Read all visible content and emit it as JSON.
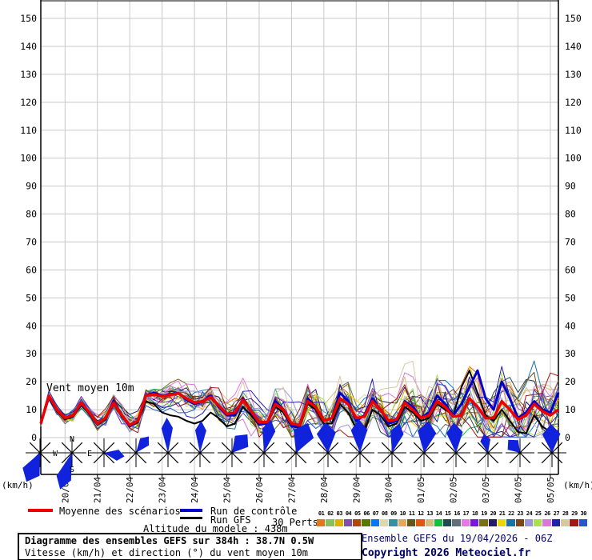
{
  "colors": {
    "mean": "#ee0000",
    "control": "#0000cc",
    "gfs": "#000000",
    "rose": "#1122dd",
    "grid": "#c8c8c8",
    "axis": "#000000",
    "credit_text": "#000066"
  },
  "chart_data": {
    "type": "line",
    "title": "Diagramme des ensembles GEFS sur 384h : 38.7N 0.5W",
    "subtitle": "Vitesse (km/h) et direction (°) du vent moyen 10m",
    "annotation": "Vent moyen 10m",
    "unit_left": "(km/h)",
    "unit_right": "(km/h)",
    "ylim": [
      0,
      155
    ],
    "yticks": [
      0,
      10,
      20,
      30,
      40,
      50,
      60,
      70,
      80,
      90,
      100,
      110,
      120,
      130,
      140,
      150
    ],
    "step_hours": 6,
    "total_hours": 384,
    "x_dates": [
      "20/04",
      "21/04",
      "22/04",
      "23/04",
      "24/04",
      "25/04",
      "26/04",
      "27/04",
      "28/04",
      "29/04",
      "30/04",
      "01/05",
      "02/05",
      "03/05",
      "04/05",
      "05/05"
    ],
    "series": [
      {
        "name": "Moyenne des scénarios",
        "color": "#ee0000",
        "values": [
          5,
          15,
          10,
          7,
          8,
          12.5,
          9,
          5,
          7,
          12.5,
          8,
          4.5,
          6,
          15,
          15.5,
          14.8,
          15.3,
          15.8,
          14,
          12.5,
          13,
          14.5,
          11.5,
          8.5,
          9,
          13.5,
          9.5,
          5.5,
          5.5,
          12,
          10,
          5,
          4.5,
          13,
          11,
          6,
          7,
          14,
          12,
          7,
          7.5,
          13,
          10,
          6,
          6.5,
          12.5,
          10,
          7,
          8,
          13,
          11,
          7.5,
          8,
          14,
          11,
          7,
          7,
          13,
          10,
          6.5,
          8,
          12,
          9.5,
          8,
          10
        ]
      },
      {
        "name": "Run de contrôle",
        "color": "#0000cc",
        "values": [
          5,
          14.5,
          10,
          7,
          8,
          12,
          9,
          5,
          7,
          13,
          8,
          4,
          6,
          15,
          16,
          15,
          15.5,
          16,
          13.5,
          12,
          13,
          15,
          11,
          8,
          8,
          14,
          9,
          5,
          5,
          13,
          10,
          4,
          4,
          14,
          11,
          6,
          7,
          16,
          13,
          6,
          8,
          14,
          10,
          5,
          6,
          13,
          11,
          7,
          9,
          15,
          12,
          8,
          12,
          18,
          24,
          14,
          10,
          20,
          14,
          7,
          9,
          13,
          10,
          9,
          16
        ]
      },
      {
        "name": "Run GFS",
        "color": "#000000",
        "values": [
          5,
          14,
          9.5,
          6.5,
          7.5,
          11.5,
          8.5,
          4.5,
          6.5,
          12,
          7.5,
          4,
          5.5,
          13,
          12,
          9,
          8,
          7.5,
          6,
          5,
          6,
          9,
          7,
          4,
          5,
          11,
          8,
          4.5,
          5,
          11,
          9,
          4,
          3.5,
          12,
          10,
          5,
          5,
          12,
          9,
          3,
          2.5,
          10,
          8,
          4,
          5,
          11,
          9,
          6,
          7,
          12,
          10,
          8,
          18,
          24,
          16,
          8,
          6,
          10,
          6,
          2,
          1.5,
          8,
          4,
          2,
          2
        ]
      }
    ],
    "members": {
      "count": 30,
      "seed": 13,
      "spread_base": 1.0,
      "spread_growth": 0.14,
      "max": 36,
      "colors": [
        "#e07820",
        "#88c060",
        "#e0b000",
        "#8050a8",
        "#b04808",
        "#587800",
        "#0878f0",
        "#dcd8b0",
        "#3890a0",
        "#e0a860",
        "#605818",
        "#e05810",
        "#d0c080",
        "#10c040",
        "#204850",
        "#607078",
        "#e878e8",
        "#7818d8",
        "#787018",
        "#281868",
        "#e8d800",
        "#1870a8",
        "#784818",
        "#9898d8",
        "#a8e050",
        "#d878d8",
        "#2020a8",
        "#d8c8a0",
        "#a01818",
        "#2858c8"
      ]
    },
    "wind_roses": [
      {
        "dir": 205,
        "len": 40,
        "spread": 24
      },
      {
        "dir": 198,
        "len": 48,
        "spread": 16
      },
      {
        "dir": 100,
        "len": 26,
        "spread": 22
      },
      {
        "dir": 38,
        "len": 26,
        "spread": 22
      },
      {
        "dir": 358,
        "len": 44,
        "spread": 13
      },
      {
        "dir": 2,
        "len": 40,
        "spread": 14
      },
      {
        "dir": 40,
        "len": 30,
        "spread": 30
      },
      {
        "dir": 12,
        "len": 42,
        "spread": 16
      },
      {
        "dir": 22,
        "len": 40,
        "spread": 28
      },
      {
        "dir": 355,
        "len": 38,
        "spread": 26
      },
      {
        "dir": 358,
        "len": 42,
        "spread": 20
      },
      {
        "dir": 14,
        "len": 38,
        "spread": 18
      },
      {
        "dir": 8,
        "len": 40,
        "spread": 24
      },
      {
        "dir": 356,
        "len": 38,
        "spread": 22
      },
      {
        "dir": 348,
        "len": 24,
        "spread": 22
      },
      {
        "dir": 318,
        "len": 22,
        "spread": 34
      },
      {
        "dir": 358,
        "len": 36,
        "spread": 26
      }
    ],
    "compass": {
      "n": "N",
      "e": "E",
      "s": "S",
      "w": "W"
    }
  },
  "legend": {
    "mean_label": "Moyenne des scénarios",
    "control_label": "Run de contrôle",
    "gfs_label": "Run GFS",
    "perts_label": "30 Perts.",
    "pert_labels": [
      "01",
      "02",
      "03",
      "04",
      "05",
      "06",
      "07",
      "08",
      "09",
      "10",
      "11",
      "12",
      "13",
      "14",
      "15",
      "16",
      "17",
      "18",
      "19",
      "20",
      "21",
      "22",
      "23",
      "24",
      "25",
      "26",
      "27",
      "28",
      "29",
      "30"
    ]
  },
  "footer": {
    "altitude": "Altitude du modele : 438m"
  },
  "info_box": {
    "line1": "Diagramme des ensembles GEFS sur 384h : 38.7N 0.5W",
    "line2": "Vitesse (km/h) et direction (°) du vent moyen 10m"
  },
  "credits": {
    "run": "Ensemble GEFS du 19/04/2026 - 06Z",
    "copyright": "Copyright 2026 Meteociel.fr"
  }
}
